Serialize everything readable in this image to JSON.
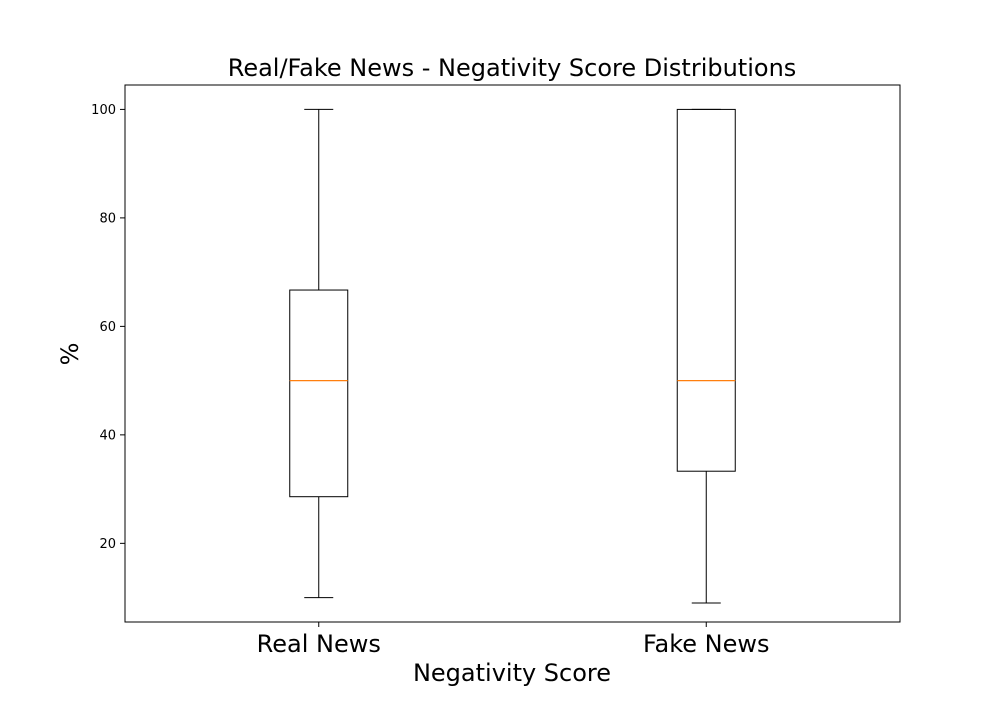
{
  "chart_data": {
    "type": "box",
    "title": "Real/Fake News - Negativity Score Distributions",
    "xlabel": "Negativity Score",
    "ylabel": "%",
    "categories": [
      "Real News",
      "Fake News"
    ],
    "boxes": [
      {
        "category": "Real News",
        "whisker_low": 10,
        "q1": 28.6,
        "median": 50,
        "q3": 66.7,
        "whisker_high": 100
      },
      {
        "category": "Fake News",
        "whisker_low": 9,
        "q1": 33.3,
        "median": 50,
        "q3": 100,
        "whisker_high": 100
      }
    ],
    "ylim": [
      5.5,
      104.5
    ],
    "yticks": [
      20,
      40,
      60,
      80,
      100
    ],
    "grid": false,
    "legend": "none",
    "colors": {
      "box": "#000000",
      "whisker": "#000000",
      "median": "#ff7f0e",
      "background": "#ffffff"
    }
  }
}
